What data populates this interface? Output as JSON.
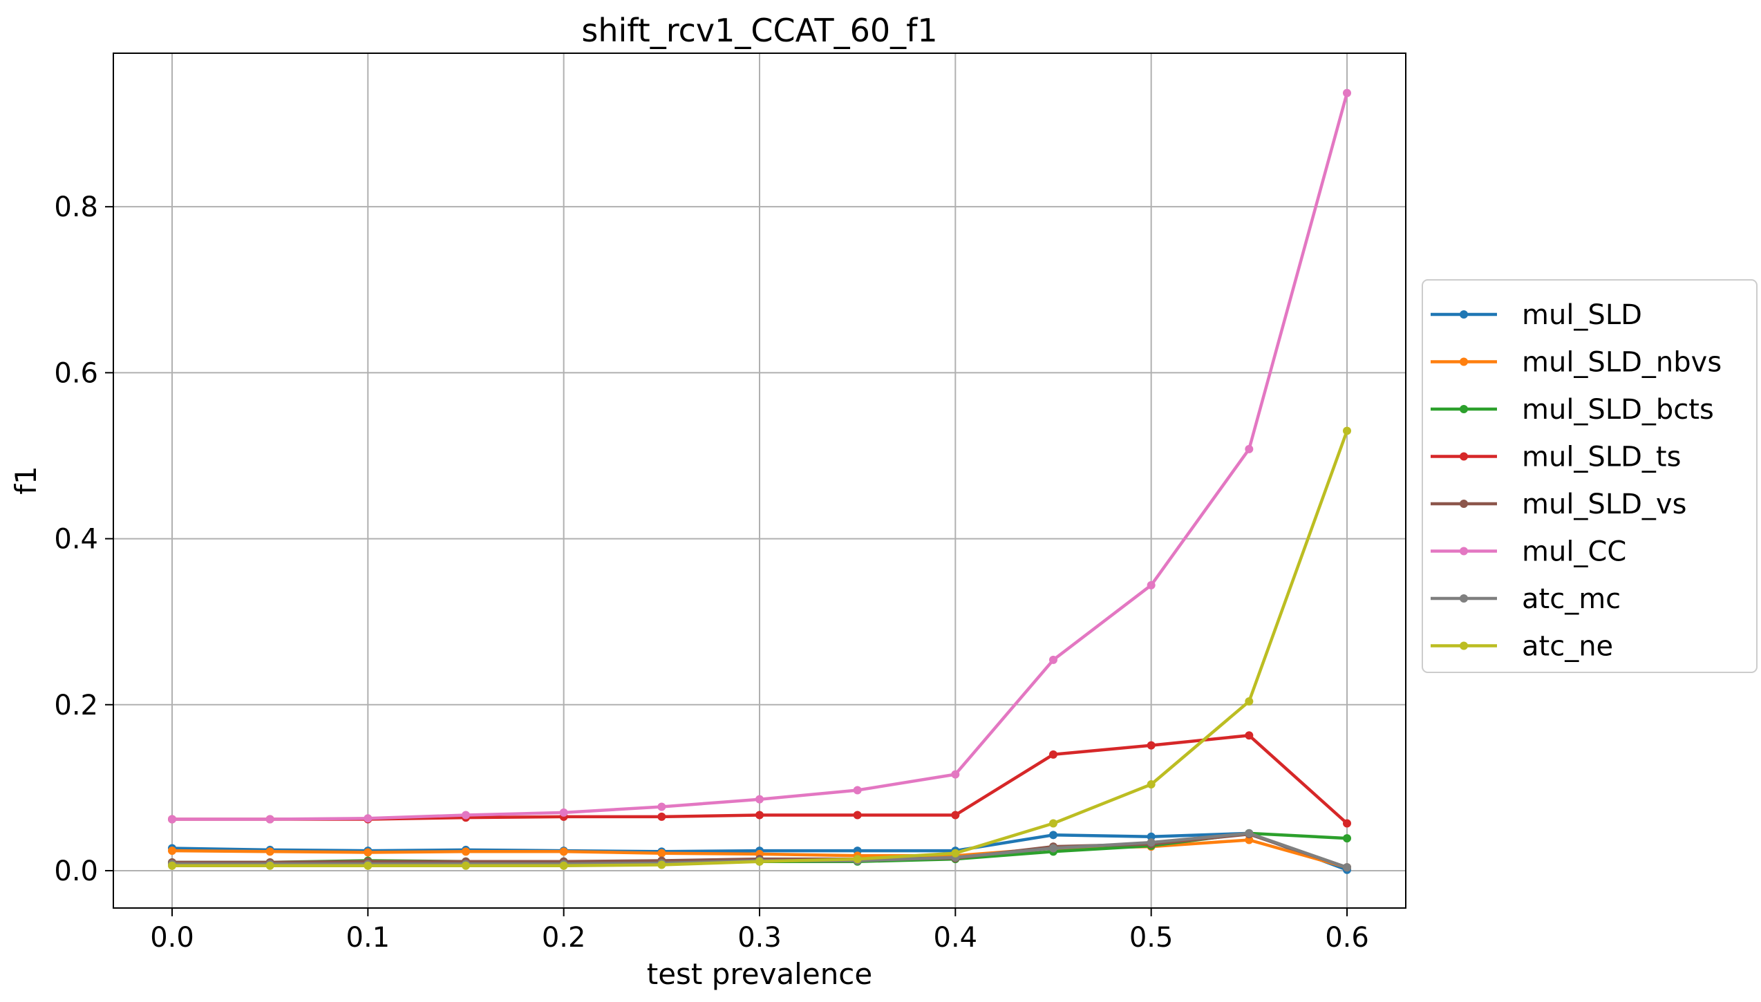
{
  "chart_data": {
    "type": "line",
    "title": "shift_rcv1_CCAT_60_f1",
    "xlabel": "test prevalence",
    "ylabel": "f1",
    "xlim": [
      -0.03,
      0.63
    ],
    "ylim": [
      -0.045,
      0.985
    ],
    "xticks": [
      0.0,
      0.1,
      0.2,
      0.3,
      0.4,
      0.5,
      0.6
    ],
    "xtick_labels": [
      "0.0",
      "0.1",
      "0.2",
      "0.3",
      "0.4",
      "0.5",
      "0.6"
    ],
    "yticks": [
      0.0,
      0.2,
      0.4,
      0.6,
      0.8
    ],
    "ytick_labels": [
      "0.0",
      "0.2",
      "0.4",
      "0.6",
      "0.8"
    ],
    "grid": true,
    "legend_position": "right-outside",
    "x": [
      0.0,
      0.05,
      0.1,
      0.15,
      0.2,
      0.25,
      0.3,
      0.35,
      0.4,
      0.45,
      0.5,
      0.55,
      0.6
    ],
    "series": [
      {
        "name": "mul_SLD",
        "color": "#1f77b4",
        "values": [
          0.027,
          0.025,
          0.024,
          0.025,
          0.024,
          0.023,
          0.024,
          0.024,
          0.024,
          0.043,
          0.041,
          0.045,
          0.001
        ]
      },
      {
        "name": "mul_SLD_nbvs",
        "color": "#ff7f0e",
        "values": [
          0.024,
          0.023,
          0.022,
          0.023,
          0.023,
          0.021,
          0.02,
          0.018,
          0.018,
          0.027,
          0.029,
          0.037,
          0.004
        ]
      },
      {
        "name": "mul_SLD_bcts",
        "color": "#2ca02c",
        "values": [
          0.01,
          0.01,
          0.012,
          0.011,
          0.011,
          0.011,
          0.011,
          0.011,
          0.014,
          0.023,
          0.03,
          0.045,
          0.039
        ]
      },
      {
        "name": "mul_SLD_ts",
        "color": "#d62728",
        "values": [
          0.062,
          0.062,
          0.062,
          0.064,
          0.065,
          0.065,
          0.067,
          0.067,
          0.067,
          0.14,
          0.151,
          0.163,
          0.057
        ]
      },
      {
        "name": "mul_SLD_vs",
        "color": "#8c564b",
        "values": [
          0.01,
          0.01,
          0.011,
          0.011,
          0.011,
          0.012,
          0.014,
          0.014,
          0.015,
          0.029,
          0.032,
          0.044,
          0.004
        ]
      },
      {
        "name": "mul_CC",
        "color": "#e377c2",
        "values": [
          0.062,
          0.062,
          0.063,
          0.067,
          0.07,
          0.077,
          0.086,
          0.097,
          0.116,
          0.254,
          0.344,
          0.508,
          0.937
        ]
      },
      {
        "name": "atc_mc",
        "color": "#7f7f7f",
        "values": [
          0.008,
          0.008,
          0.008,
          0.008,
          0.008,
          0.009,
          0.012,
          0.012,
          0.016,
          0.027,
          0.034,
          0.045,
          0.004
        ]
      },
      {
        "name": "atc_ne",
        "color": "#bcbd22",
        "values": [
          0.006,
          0.006,
          0.006,
          0.006,
          0.006,
          0.007,
          0.011,
          0.014,
          0.021,
          0.057,
          0.104,
          0.204,
          0.53
        ]
      }
    ]
  }
}
